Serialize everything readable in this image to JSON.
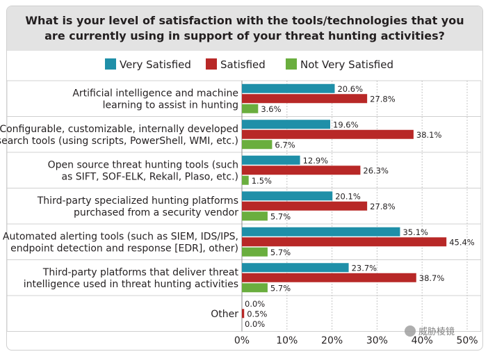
{
  "chart_data": {
    "type": "bar",
    "orientation": "horizontal",
    "title": "What is your level of satisfaction with the tools/technologies that you are currently using in support of your threat hunting activities?",
    "legend_position": "top",
    "categories": [
      [
        "Artificial intelligence and machine",
        "learning to assist in hunting"
      ],
      [
        "Configurable, customizable, internally developed",
        "search tools (using scripts, PowerShell, WMI, etc.)"
      ],
      [
        "Open source threat hunting tools (such",
        "as SIFT, SOF-ELK, Rekall, Plaso, etc.)"
      ],
      [
        "Third-party specialized hunting platforms",
        "purchased from a security vendor"
      ],
      [
        "Automated alerting tools (such as SIEM, IDS/IPS,",
        "endpoint detection and response [EDR], other)"
      ],
      [
        "Third-party platforms that deliver threat",
        "intelligence used in threat hunting activities"
      ],
      [
        "Other"
      ]
    ],
    "series": [
      {
        "name": "Very Satisfied",
        "color": "#1f8fa8",
        "values": [
          20.6,
          19.6,
          12.9,
          20.1,
          35.1,
          23.7,
          0.0
        ]
      },
      {
        "name": "Satisfied",
        "color": "#b82827",
        "values": [
          27.8,
          38.1,
          26.3,
          27.8,
          45.4,
          38.7,
          0.5
        ]
      },
      {
        "name": "Not Very Satisfied",
        "color": "#6aae3e",
        "values": [
          3.6,
          6.7,
          1.5,
          5.7,
          5.7,
          5.7,
          0.0
        ]
      }
    ],
    "xlim": [
      0,
      50
    ],
    "xticks": [
      0,
      10,
      20,
      30,
      40,
      50
    ],
    "tick_suffix": "%",
    "value_label_suffix": "%",
    "grid": true
  },
  "watermark": {
    "icon": "wechat-icon",
    "text": "威胁棱镜"
  }
}
